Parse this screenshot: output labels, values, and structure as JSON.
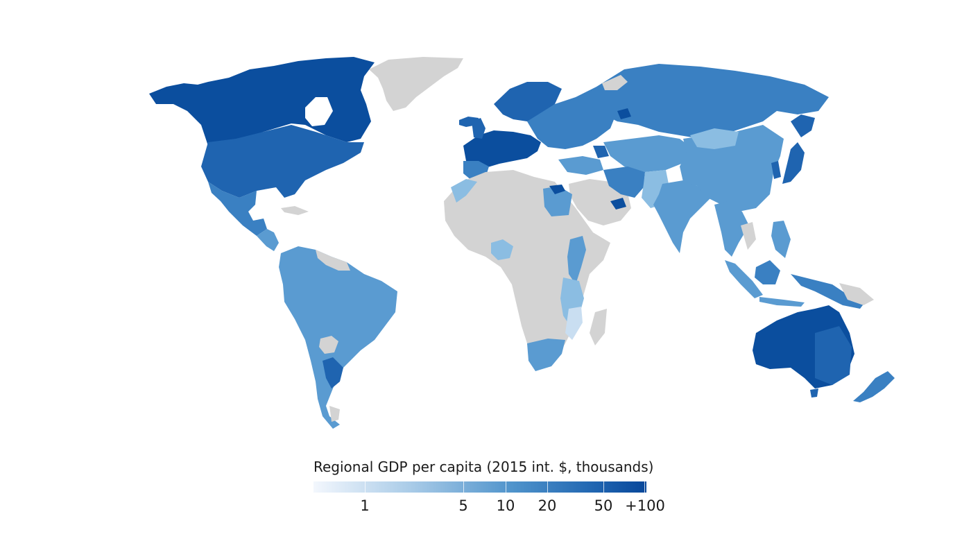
{
  "legend": {
    "title": "Regional GDP per capita (2015 int. $, thousands)",
    "ticks": [
      "1",
      "5",
      "10",
      "20",
      "50",
      "+100"
    ],
    "scale": "log",
    "color_min": "#f3f7fd",
    "color_max": "#08479a"
  },
  "colors": {
    "no_data": "#d3d3d3",
    "very_high": "#0b4e9e",
    "high": "#1f64b0",
    "mid_high": "#3a80c2",
    "mid": "#5a9bd1",
    "low": "#8bbde2",
    "very_low": "#c9def1"
  }
}
